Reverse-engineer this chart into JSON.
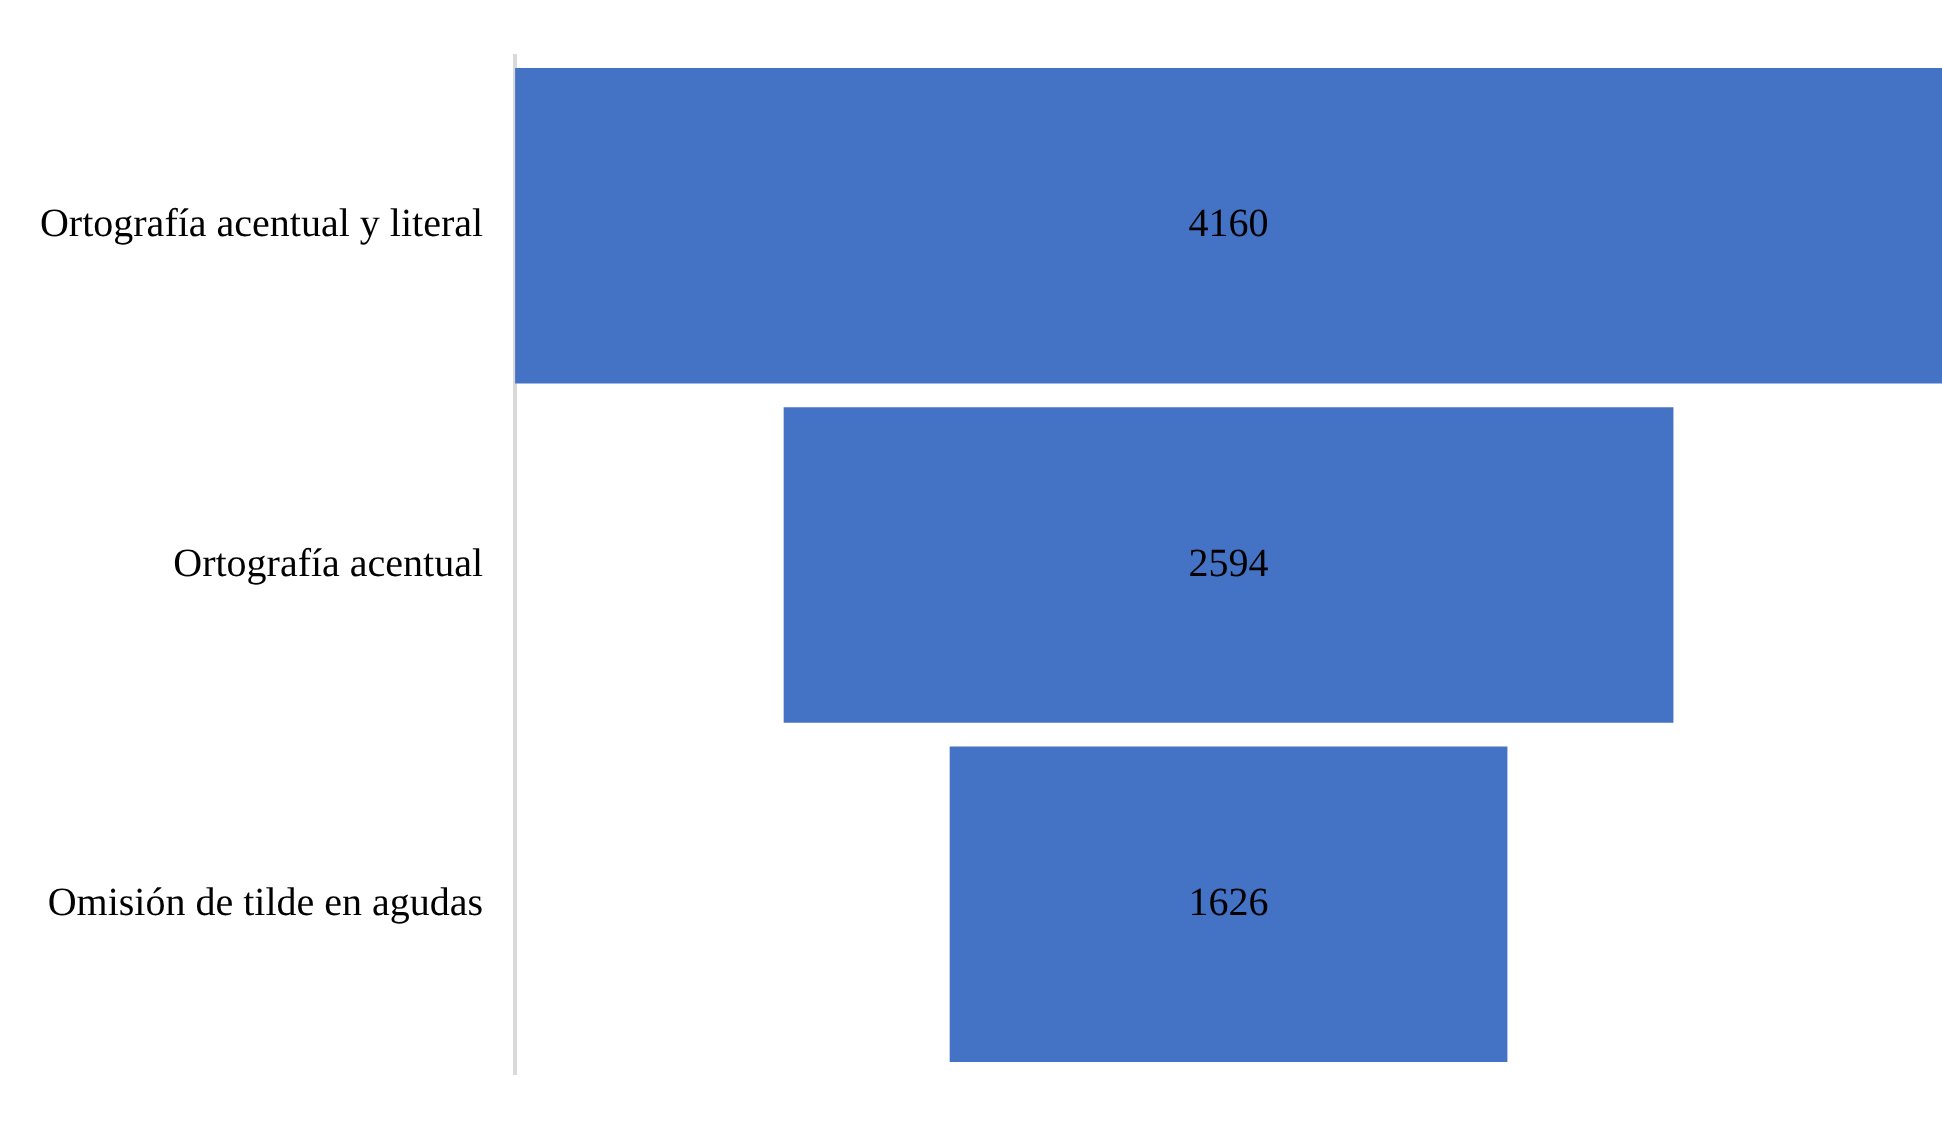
{
  "chart_data": {
    "type": "other",
    "categories": [
      "Ortografía acentual y literal",
      "Ortografía acentual",
      "Omisión de tilde en agudas"
    ],
    "values": [
      4160,
      2594,
      1626
    ],
    "color": "#4472c4",
    "data_labels": true
  }
}
